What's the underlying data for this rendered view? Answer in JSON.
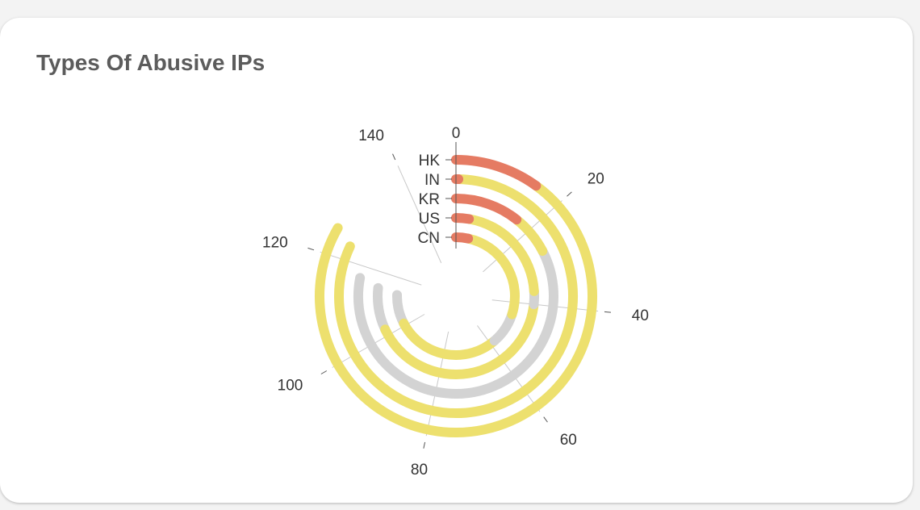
{
  "card": {
    "title": "Types Of Abusive IPs"
  },
  "chart_data": {
    "type": "radial-bar",
    "title": "Types Of Abusive IPs",
    "categories": [
      "HK",
      "IN",
      "KR",
      "US",
      "CN"
    ],
    "angular_axis": {
      "range": [
        0,
        150
      ],
      "ticks": [
        "0",
        "20",
        "40",
        "60",
        "80",
        "100",
        "120",
        "140"
      ]
    },
    "series": [
      {
        "color": "#e57b63",
        "values": [
          15,
          0.5,
          16,
          4,
          5
        ]
      },
      {
        "color": "#ede06e",
        "values": [
          0,
          32,
          10,
          32,
          40
        ]
      },
      {
        "color": "#d3d3d3",
        "values": [
          0,
          0,
          38,
          4,
          13
        ]
      }
    ],
    "totals": [
      125,
      123,
      117,
      115,
      113
    ],
    "colors": {
      "segment_order": [
        "#e57b63",
        "#ede06e",
        "#d3d3d3",
        "#ede06e",
        "#d3d3d3"
      ],
      "spoke": "#c8c8c8",
      "axis_tick": "#555555"
    },
    "segments": [
      [
        "#e57b63",
        15,
        "#ede06e",
        0,
        "#d3d3d3",
        0,
        "#ede06e",
        110,
        "#d3d3d3",
        0
      ],
      [
        "#e57b63",
        0.5,
        "#ede06e",
        32,
        "#d3d3d3",
        0,
        "#ede06e",
        90.5,
        "#d3d3d3",
        0
      ],
      [
        "#e57b63",
        16,
        "#ede06e",
        10,
        "#d3d3d3",
        38,
        "#ede06e",
        0,
        "#d3d3d3",
        53
      ],
      [
        "#e57b63",
        4,
        "#ede06e",
        32,
        "#d3d3d3",
        4,
        "#ede06e",
        62,
        "#d3d3d3",
        13
      ],
      [
        "#e57b63",
        5,
        "#ede06e",
        40,
        "#d3d3d3",
        13,
        "#ede06e",
        43,
        "#d3d3d3",
        12
      ]
    ]
  }
}
